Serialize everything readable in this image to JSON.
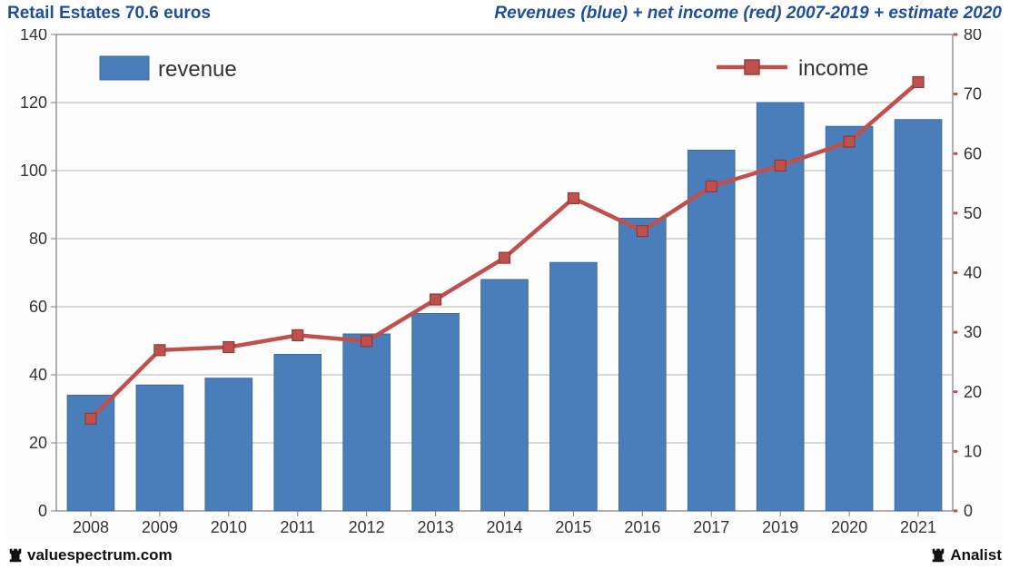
{
  "header": {
    "left": "Retail Estates 70.6 euros",
    "right": "Revenues (blue) + net income (red) 2007-2019 + estimate 2020"
  },
  "footer": {
    "left": "valuespectrum.com",
    "right": "Analist"
  },
  "chart": {
    "type": "bar+line-dual-axis",
    "background_color": "#fdfdfd",
    "plot_border_color": "#7d7d7d",
    "grid_color": "#b5b5b5",
    "categories": [
      "2008",
      "2009",
      "2010",
      "2011",
      "2012",
      "2013",
      "2014",
      "2015",
      "2016",
      "2017",
      "2019",
      "2020",
      "2021"
    ],
    "left_axis": {
      "min": 0,
      "max": 140,
      "tick_step": 20,
      "tick_color": "#333",
      "label_fontsize": 18
    },
    "right_axis": {
      "min": 0,
      "max": 80,
      "tick_step": 10,
      "tick_color": "#333",
      "label_fontsize": 18,
      "axis_line_color": "#c0504d"
    },
    "bars": {
      "label": "revenue",
      "color": "#4a7ebb",
      "border_color": "#3c6aa5",
      "width_frac": 0.68,
      "values": [
        34,
        37,
        39,
        46,
        52,
        58,
        68,
        73,
        86,
        106,
        120,
        113,
        115
      ]
    },
    "line": {
      "label": "income",
      "color": "#c0504d",
      "marker_border": "#8e3a37",
      "line_width": 4.5,
      "marker_size": 12,
      "values": [
        15.5,
        27,
        27.5,
        29.5,
        28.5,
        35.5,
        42.5,
        52.5,
        47,
        54.5,
        58,
        62,
        72
      ]
    },
    "legend": {
      "revenue_swatch": "#4a7ebb",
      "income_color": "#c0504d",
      "fontsize": 24
    }
  },
  "colors": {
    "header_text": "#1f4e9c",
    "footer_text": "#111111"
  }
}
